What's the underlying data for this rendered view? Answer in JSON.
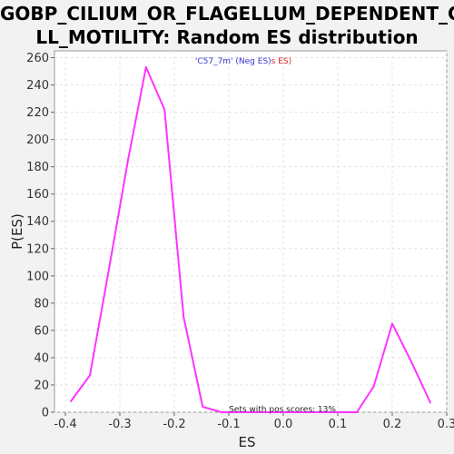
{
  "chart_data": {
    "type": "line",
    "title_line1": "GOBP_CILIUM_OR_FLAGELLUM_DEPENDENT_CE",
    "title_line2": "LL_MOTILITY: Random ES distribution",
    "xlabel": "ES",
    "ylabel": "P(ES)",
    "xlim": [
      -0.42,
      0.3
    ],
    "ylim": [
      0,
      265
    ],
    "xticks": [
      -0.4,
      -0.3,
      -0.2,
      -0.1,
      0.0,
      0.1,
      0.2,
      0.3
    ],
    "xtick_labels": [
      "-0.4",
      "-0.3",
      "-0.2",
      "-0.1",
      "0.0",
      "0.1",
      "0.2",
      "0.3"
    ],
    "yticks": [
      0,
      20,
      40,
      60,
      80,
      100,
      120,
      140,
      160,
      180,
      200,
      220,
      240,
      260
    ],
    "ytick_labels": [
      "0",
      "20",
      "40",
      "60",
      "80",
      "100",
      "120",
      "140",
      "160",
      "180",
      "200",
      "220",
      "240",
      "260"
    ],
    "grid": true,
    "legend": {
      "part1": "'C57_7m' (Neg ES)",
      "part2": "s ES)",
      "color1": "#3333cc",
      "color2": "#dd2222",
      "placement": "top-center"
    },
    "annotation": "Sets with pos scores: 13%",
    "series": [
      {
        "color": "#ff33ff",
        "x": [
          -0.39,
          -0.355,
          -0.32,
          -0.285,
          -0.252,
          -0.218,
          -0.183,
          -0.148,
          -0.113,
          0.135,
          0.166,
          0.2,
          0.235,
          0.27
        ],
        "y": [
          8,
          27,
          105,
          185,
          253,
          222,
          70,
          4,
          0,
          0,
          19,
          65,
          37,
          7
        ]
      }
    ]
  }
}
